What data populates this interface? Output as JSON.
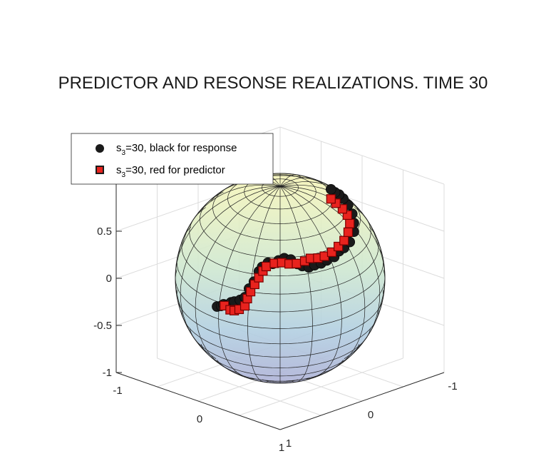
{
  "chart_data": {
    "type": "scatter",
    "subtype": "3d-scatter-on-unit-sphere",
    "title": "PREDICTOR AND RESONSE REALIZATIONS. TIME 30",
    "xlabel": "",
    "ylabel": "",
    "zlabel": "",
    "xlim": [
      -1,
      1
    ],
    "ylim": [
      -1,
      1
    ],
    "zlim": [
      -1,
      1
    ],
    "x_ticks": [
      "-1",
      "0",
      "1"
    ],
    "y_ticks": [
      "-1",
      "0",
      "1"
    ],
    "z_ticks": [
      "-1",
      "-0.5",
      "0",
      "0.5"
    ],
    "grid": true,
    "legend_position": "top-left",
    "colors": {
      "response": "#1a1a1a",
      "predictor": "#e8231e",
      "predictor_edge": "#7a0000"
    },
    "legend": [
      {
        "prefix": "s",
        "sub": "3",
        "suffix": "=30, black for response",
        "marker": "circle",
        "color": "#1a1a1a"
      },
      {
        "prefix": "s",
        "sub": "3",
        "suffix": "=30, red for predictor",
        "marker": "square",
        "color": "#e8231e"
      }
    ],
    "series": [
      {
        "name": "s3=30, black for response",
        "marker": "circle",
        "points": [
          [
            -0.6,
            0.17,
            -0.43
          ],
          [
            -0.57,
            0.15,
            -0.42
          ],
          [
            -0.55,
            0.14,
            -0.4
          ],
          [
            -0.52,
            0.13,
            -0.4
          ],
          [
            -0.49,
            0.11,
            -0.37
          ],
          [
            -0.45,
            0.11,
            -0.35
          ],
          [
            -0.41,
            0.08,
            -0.33
          ],
          [
            -0.38,
            0.05,
            -0.3
          ],
          [
            -0.34,
            0.04,
            -0.2
          ],
          [
            -0.3,
            0.02,
            -0.12
          ],
          [
            -0.25,
            0.01,
            0.0
          ],
          [
            -0.21,
            0.01,
            0.06
          ],
          [
            -0.15,
            0.0,
            0.12
          ],
          [
            -0.1,
            -0.01,
            0.12
          ],
          [
            -0.06,
            -0.04,
            0.16
          ],
          [
            -0.03,
            -0.08,
            0.18
          ],
          [
            0.0,
            -0.13,
            0.16
          ],
          [
            0.02,
            -0.19,
            0.1
          ],
          [
            0.02,
            -0.25,
            0.06
          ],
          [
            0.05,
            -0.3,
            0.04
          ],
          [
            0.08,
            -0.34,
            0.06
          ],
          [
            0.12,
            -0.38,
            0.08
          ],
          [
            0.17,
            -0.4,
            0.12
          ],
          [
            0.22,
            -0.44,
            0.16
          ],
          [
            0.28,
            -0.44,
            0.24
          ],
          [
            0.32,
            -0.46,
            0.28
          ],
          [
            0.35,
            -0.5,
            0.34
          ],
          [
            0.36,
            -0.54,
            0.44
          ],
          [
            0.34,
            -0.56,
            0.52
          ],
          [
            0.3,
            -0.58,
            0.6
          ],
          [
            0.25,
            -0.58,
            0.68
          ],
          [
            0.21,
            -0.56,
            0.74
          ],
          [
            0.18,
            -0.54,
            0.78
          ],
          [
            0.15,
            -0.52,
            0.8
          ],
          [
            0.12,
            -0.5,
            0.83
          ]
        ]
      },
      {
        "name": "s3=30, red for predictor",
        "marker": "square",
        "points": [
          [
            -0.52,
            0.16,
            -0.4
          ],
          [
            -0.48,
            0.13,
            -0.44
          ],
          [
            -0.44,
            0.12,
            -0.44
          ],
          [
            -0.4,
            0.1,
            -0.42
          ],
          [
            -0.36,
            0.07,
            -0.38
          ],
          [
            -0.34,
            0.06,
            -0.3
          ],
          [
            -0.31,
            0.05,
            -0.22
          ],
          [
            -0.28,
            0.03,
            -0.14
          ],
          [
            -0.24,
            0.02,
            -0.06
          ],
          [
            -0.2,
            0.01,
            0.02
          ],
          [
            -0.16,
            0.01,
            0.08
          ],
          [
            -0.1,
            -0.03,
            0.12
          ],
          [
            -0.05,
            -0.07,
            0.13
          ],
          [
            0.0,
            -0.11,
            0.12
          ],
          [
            0.04,
            -0.16,
            0.12
          ],
          [
            0.08,
            -0.22,
            0.14
          ],
          [
            0.1,
            -0.27,
            0.16
          ],
          [
            0.14,
            -0.32,
            0.16
          ],
          [
            0.18,
            -0.36,
            0.18
          ],
          [
            0.22,
            -0.41,
            0.22
          ],
          [
            0.26,
            -0.45,
            0.28
          ],
          [
            0.29,
            -0.49,
            0.34
          ],
          [
            0.3,
            -0.53,
            0.42
          ],
          [
            0.29,
            -0.56,
            0.5
          ],
          [
            0.26,
            -0.56,
            0.58
          ],
          [
            0.22,
            -0.54,
            0.64
          ],
          [
            0.18,
            -0.5,
            0.7
          ],
          [
            0.14,
            -0.48,
            0.74
          ]
        ]
      }
    ]
  }
}
